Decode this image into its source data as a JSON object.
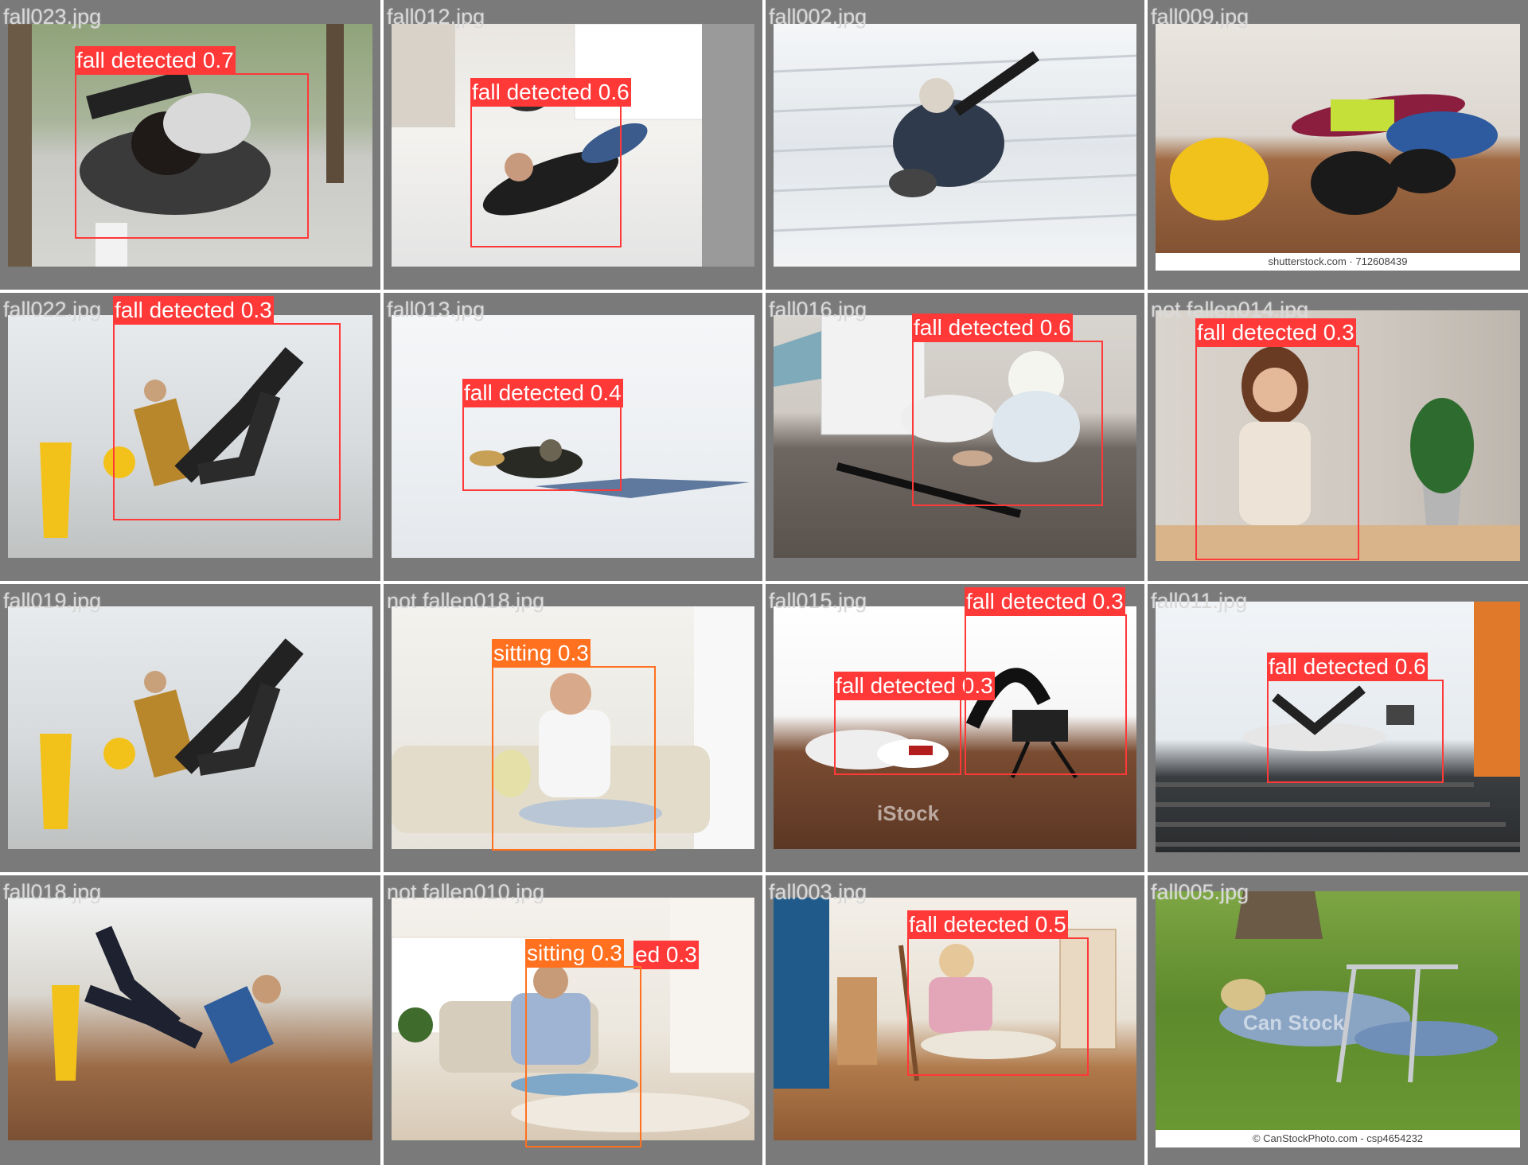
{
  "tiles": [
    {
      "filename": "fall023.jpg",
      "boxes": [
        {
          "label": "fall detected 0.7"
        }
      ]
    },
    {
      "filename": "fall012.jpg",
      "boxes": [
        {
          "label": "fall detected 0.6"
        }
      ]
    },
    {
      "filename": "fall002.jpg",
      "boxes": []
    },
    {
      "filename": "fall009.jpg",
      "boxes": [],
      "caption": "shutterstock.com · 712608439"
    },
    {
      "filename": "fall022.jpg",
      "boxes": [
        {
          "label": "fall detected 0.3"
        }
      ]
    },
    {
      "filename": "fall013.jpg",
      "boxes": [
        {
          "label": "fall detected 0.4"
        }
      ]
    },
    {
      "filename": "fall016.jpg",
      "boxes": [
        {
          "label": "fall detected 0.6"
        }
      ]
    },
    {
      "filename": "not fallen014.jpg",
      "boxes": [
        {
          "label": "fall detected 0.3"
        }
      ]
    },
    {
      "filename": "fall019.jpg",
      "boxes": []
    },
    {
      "filename": "not fallen018.jpg",
      "boxes": [
        {
          "label": "sitting 0.3"
        }
      ]
    },
    {
      "filename": "fall015.jpg",
      "boxes": [
        {
          "label": "fall detected 0.3"
        },
        {
          "label": "fall detected 0.3"
        }
      ],
      "watermark": "iStock"
    },
    {
      "filename": "fall011.jpg",
      "boxes": [
        {
          "label": "fall detected 0.6"
        }
      ]
    },
    {
      "filename": "fall018.jpg",
      "boxes": []
    },
    {
      "filename": "not fallen010.jpg",
      "boxes": [
        {
          "label": "sitting 0.3"
        }
      ],
      "ghost_label": "ed 0.3"
    },
    {
      "filename": "fall003.jpg",
      "boxes": [
        {
          "label": "fall detected 0.5"
        }
      ]
    },
    {
      "filename": "fall005.jpg",
      "boxes": [],
      "caption": "© CanStockPhoto.com - csp4654232",
      "watermark": "Can Stock"
    }
  ],
  "colors": {
    "tile_bg": "#7a7a7a",
    "fall_box": "#ff3838",
    "sitting_box": "#ff701f"
  }
}
